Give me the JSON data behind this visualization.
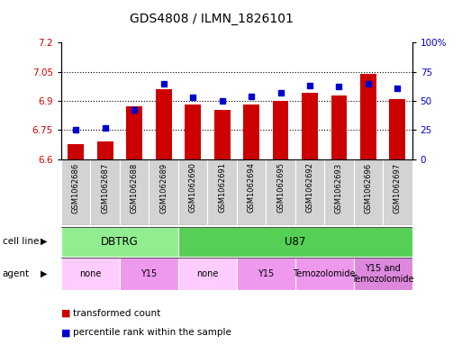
{
  "title": "GDS4808 / ILMN_1826101",
  "samples": [
    "GSM1062686",
    "GSM1062687",
    "GSM1062688",
    "GSM1062689",
    "GSM1062690",
    "GSM1062691",
    "GSM1062694",
    "GSM1062695",
    "GSM1062692",
    "GSM1062693",
    "GSM1062696",
    "GSM1062697"
  ],
  "bar_values": [
    6.68,
    6.69,
    6.87,
    6.96,
    6.88,
    6.855,
    6.88,
    6.9,
    6.94,
    6.93,
    7.04,
    6.91
  ],
  "dot_values": [
    25,
    27,
    42,
    65,
    53,
    50,
    54,
    57,
    63,
    62,
    65,
    61
  ],
  "bar_color": "#cc0000",
  "dot_color": "#0000cc",
  "ylim_left": [
    6.6,
    7.2
  ],
  "ylim_right": [
    0,
    100
  ],
  "yticks_left": [
    6.6,
    6.75,
    6.9,
    7.05,
    7.2
  ],
  "yticks_right": [
    0,
    25,
    50,
    75,
    100
  ],
  "ytick_labels_left": [
    "6.6",
    "6.75",
    "6.9",
    "7.05",
    "7.2"
  ],
  "ytick_labels_right": [
    "0",
    "25",
    "50",
    "75",
    "100%"
  ],
  "hlines": [
    6.75,
    6.9,
    7.05
  ],
  "cell_line_groups": [
    {
      "label": "DBTRG",
      "start": 0,
      "end": 4,
      "color": "#90ee90"
    },
    {
      "label": "U87",
      "start": 4,
      "end": 12,
      "color": "#55d055"
    }
  ],
  "agent_groups": [
    {
      "label": "none",
      "start": 0,
      "end": 2,
      "color": "#ffccff"
    },
    {
      "label": "Y15",
      "start": 2,
      "end": 4,
      "color": "#ee99ee"
    },
    {
      "label": "none",
      "start": 4,
      "end": 6,
      "color": "#ffccff"
    },
    {
      "label": "Y15",
      "start": 6,
      "end": 8,
      "color": "#ee99ee"
    },
    {
      "label": "Temozolomide",
      "start": 8,
      "end": 10,
      "color": "#ee99ee"
    },
    {
      "label": "Y15 and\nTemozolomide",
      "start": 10,
      "end": 12,
      "color": "#dd88dd"
    }
  ],
  "xtick_bg_color": "#d3d3d3",
  "legend_items": [
    {
      "label": "transformed count",
      "color": "#cc0000"
    },
    {
      "label": "percentile rank within the sample",
      "color": "#0000cc"
    }
  ],
  "background_color": "#ffffff",
  "left_label_color": "#cc0000",
  "right_label_color": "#0000cc",
  "left_arrow_label": "cell line",
  "right_arrow_label": "agent"
}
